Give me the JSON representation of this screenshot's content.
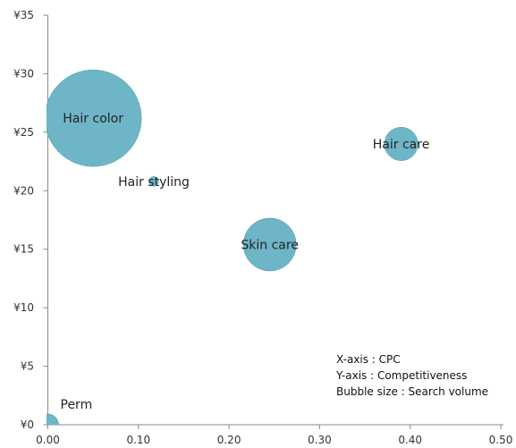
{
  "chart_data": {
    "type": "bubble",
    "x_axis": {
      "range": [
        0,
        0.5
      ],
      "ticks": [
        0,
        0.1,
        0.2,
        0.3,
        0.4,
        0.5
      ],
      "tick_labels": [
        "0.00",
        "0.10",
        "0.20",
        "0.30",
        "0.40",
        "0.50"
      ]
    },
    "y_axis": {
      "range": [
        0,
        35
      ],
      "ticks": [
        0,
        5,
        10,
        15,
        20,
        25,
        30,
        35
      ],
      "tick_labels": [
        "¥0",
        "¥5",
        "¥10",
        "¥15",
        "¥20",
        "¥25",
        "¥30",
        "¥35"
      ]
    },
    "grid": false,
    "points": [
      {
        "label": "Hair color",
        "x": 0.05,
        "y": 26.2,
        "size": 100
      },
      {
        "label": "Hair styling",
        "x": 0.117,
        "y": 20.8,
        "size": 1
      },
      {
        "label": "Hair care",
        "x": 0.39,
        "y": 24.0,
        "size": 12
      },
      {
        "label": "Skin care",
        "x": 0.245,
        "y": 15.4,
        "size": 30
      },
      {
        "label": "Perm",
        "x": 0.0,
        "y": 0.0,
        "size": 5
      }
    ],
    "bubble_color": "#6fb5c8",
    "bubble_edge_color": "#4f97aa",
    "annotations": [
      "X-axis : CPC",
      "Y-axis : Competitiveness",
      "Bubble size : Search volume"
    ]
  }
}
